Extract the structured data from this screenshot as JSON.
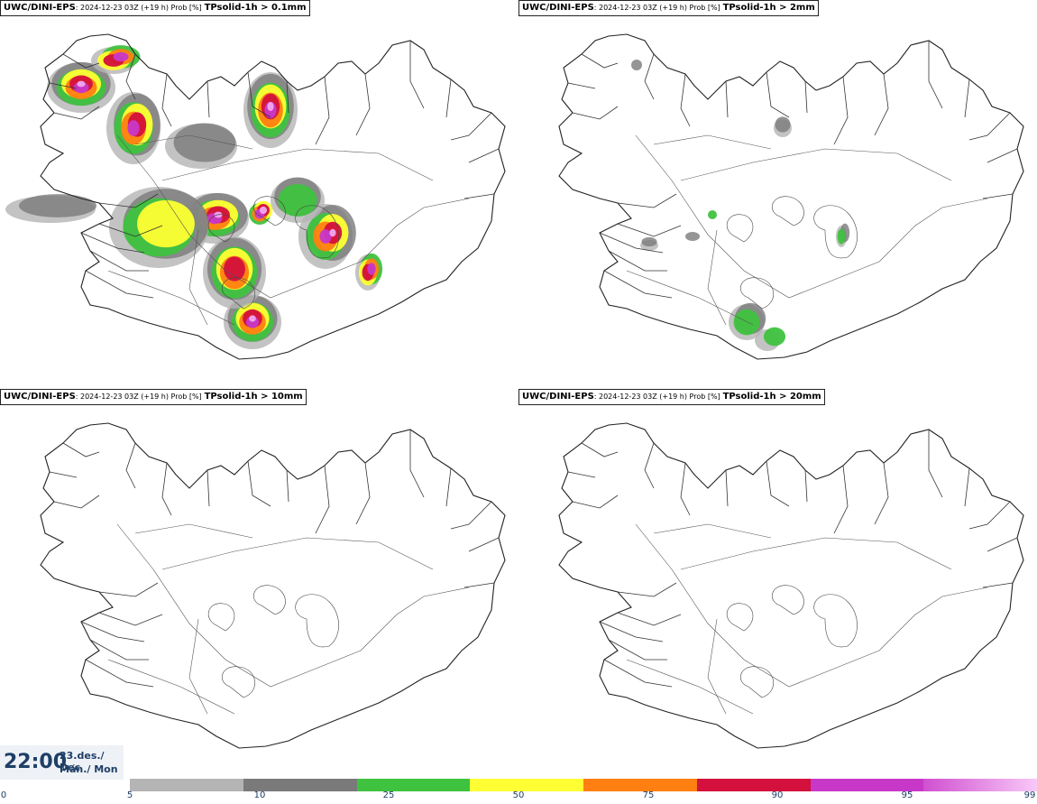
{
  "panels": [
    {
      "model": "UWC/DINI-EPS",
      "run": ": 2024-12-23 03Z (+19 h) Prob [%]",
      "var": "TPsolid-1h > 0.1mm",
      "level": "high"
    },
    {
      "model": "UWC/DINI-EPS",
      "run": ": 2024-12-23 03Z (+19 h) Prob [%]",
      "var": "TPsolid-1h > 2mm",
      "level": "low"
    },
    {
      "model": "UWC/DINI-EPS",
      "run": ": 2024-12-23 03Z (+19 h) Prob [%]",
      "var": "TPsolid-1h > 10mm",
      "level": "none"
    },
    {
      "model": "UWC/DINI-EPS",
      "run": ": 2024-12-23 03Z (+19 h) Prob [%]",
      "var": "TPsolid-1h > 20mm",
      "level": "none"
    }
  ],
  "time": {
    "clock": "22:00",
    "date": "23.des./ Dec",
    "day": "Mán./ Mon"
  },
  "legend": {
    "ticks": [
      "0",
      "5",
      "10",
      "25",
      "50",
      "75",
      "90",
      "95",
      "99"
    ],
    "colors": [
      "#b4b4b4",
      "#7a7a7a",
      "#3fc23f",
      "#ffff33",
      "#ff7f11",
      "#d4103c",
      "#c838c8",
      "#f0a8f0"
    ]
  }
}
